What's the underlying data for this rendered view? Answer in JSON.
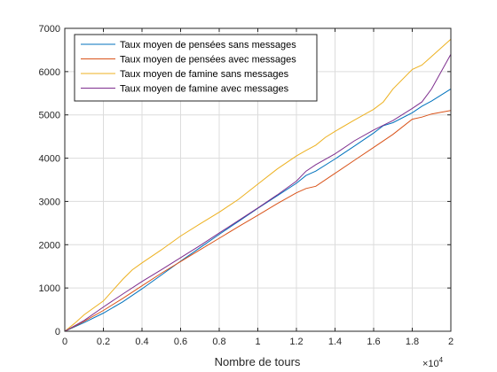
{
  "chart_data": {
    "type": "line",
    "xlabel": "Nombre de tours",
    "x_exponent": "×10",
    "x_exponent_power": "4",
    "xlim": [
      0,
      20000
    ],
    "ylim": [
      0,
      7000
    ],
    "xtick_values": [
      0,
      2000,
      4000,
      6000,
      8000,
      10000,
      12000,
      14000,
      16000,
      18000,
      20000
    ],
    "xtick_labels": [
      "0",
      "0.2",
      "0.4",
      "0.6",
      "0.8",
      "1",
      "1.2",
      "1.4",
      "1.6",
      "1.8",
      "2"
    ],
    "ytick_values": [
      0,
      1000,
      2000,
      3000,
      4000,
      5000,
      6000,
      7000
    ],
    "ytick_labels": [
      "0",
      "1000",
      "2000",
      "3000",
      "4000",
      "5000",
      "6000",
      "7000"
    ],
    "grid": true,
    "legend_position": "top-left",
    "series": [
      {
        "name": "Taux moyen de pensées sans messages",
        "color": "#0072BD",
        "points": [
          [
            0,
            0
          ],
          [
            1000,
            200
          ],
          [
            2000,
            420
          ],
          [
            3000,
            680
          ],
          [
            4000,
            980
          ],
          [
            5000,
            1300
          ],
          [
            6000,
            1620
          ],
          [
            7000,
            1930
          ],
          [
            8000,
            2240
          ],
          [
            9000,
            2540
          ],
          [
            10000,
            2840
          ],
          [
            11000,
            3130
          ],
          [
            12000,
            3420
          ],
          [
            12500,
            3600
          ],
          [
            13000,
            3700
          ],
          [
            14000,
            3980
          ],
          [
            15000,
            4280
          ],
          [
            16000,
            4580
          ],
          [
            16500,
            4750
          ],
          [
            17000,
            4820
          ],
          [
            18000,
            5050
          ],
          [
            18500,
            5200
          ],
          [
            19000,
            5320
          ],
          [
            20000,
            5600
          ]
        ]
      },
      {
        "name": "Taux moyen de pensées avec messages",
        "color": "#D95319",
        "points": [
          [
            0,
            0
          ],
          [
            1000,
            230
          ],
          [
            2000,
            480
          ],
          [
            3000,
            760
          ],
          [
            4000,
            1050
          ],
          [
            5000,
            1340
          ],
          [
            6000,
            1610
          ],
          [
            7000,
            1880
          ],
          [
            8000,
            2150
          ],
          [
            9000,
            2420
          ],
          [
            10000,
            2680
          ],
          [
            11000,
            2950
          ],
          [
            12000,
            3200
          ],
          [
            12500,
            3300
          ],
          [
            13000,
            3350
          ],
          [
            14000,
            3650
          ],
          [
            15000,
            3950
          ],
          [
            16000,
            4250
          ],
          [
            17000,
            4550
          ],
          [
            18000,
            4900
          ],
          [
            18500,
            4950
          ],
          [
            19000,
            5020
          ],
          [
            20000,
            5100
          ]
        ]
      },
      {
        "name": "Taux moyen de famine sans messages",
        "color": "#EDB120",
        "points": [
          [
            0,
            0
          ],
          [
            500,
            180
          ],
          [
            1000,
            380
          ],
          [
            2000,
            700
          ],
          [
            2500,
            950
          ],
          [
            3000,
            1200
          ],
          [
            3500,
            1420
          ],
          [
            4000,
            1580
          ],
          [
            5000,
            1880
          ],
          [
            6000,
            2200
          ],
          [
            7000,
            2480
          ],
          [
            8000,
            2750
          ],
          [
            9000,
            3050
          ],
          [
            10000,
            3400
          ],
          [
            11000,
            3750
          ],
          [
            12000,
            4050
          ],
          [
            12500,
            4180
          ],
          [
            13000,
            4300
          ],
          [
            13500,
            4480
          ],
          [
            14000,
            4620
          ],
          [
            15000,
            4880
          ],
          [
            16000,
            5130
          ],
          [
            16500,
            5300
          ],
          [
            17000,
            5600
          ],
          [
            18000,
            6050
          ],
          [
            18500,
            6150
          ],
          [
            19000,
            6350
          ],
          [
            20000,
            6750
          ]
        ]
      },
      {
        "name": "Taux moyen de famine avec messages",
        "color": "#7E2F8E",
        "points": [
          [
            0,
            0
          ],
          [
            1000,
            250
          ],
          [
            2000,
            560
          ],
          [
            3000,
            860
          ],
          [
            4000,
            1150
          ],
          [
            5000,
            1420
          ],
          [
            6000,
            1700
          ],
          [
            7000,
            1980
          ],
          [
            8000,
            2270
          ],
          [
            9000,
            2560
          ],
          [
            10000,
            2850
          ],
          [
            11000,
            3150
          ],
          [
            12000,
            3470
          ],
          [
            12500,
            3700
          ],
          [
            13000,
            3850
          ],
          [
            14000,
            4100
          ],
          [
            15000,
            4400
          ],
          [
            16000,
            4650
          ],
          [
            17000,
            4870
          ],
          [
            18000,
            5150
          ],
          [
            18500,
            5300
          ],
          [
            19000,
            5600
          ],
          [
            20000,
            6400
          ]
        ]
      }
    ]
  }
}
